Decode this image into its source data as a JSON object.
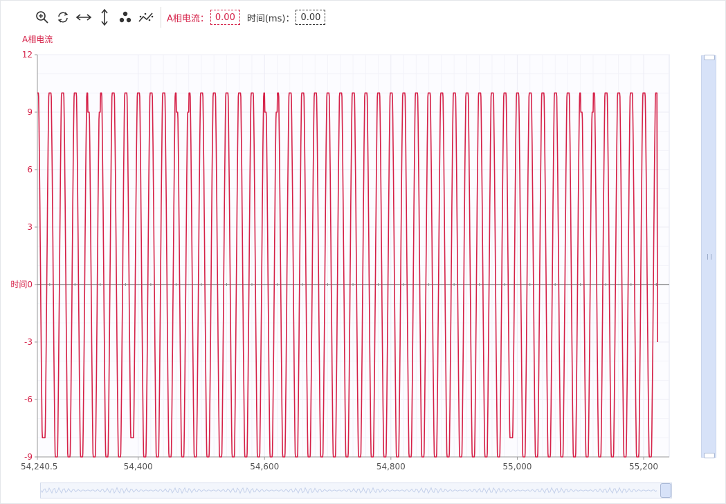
{
  "toolbar": {
    "icons": [
      "zoom-in-icon",
      "refresh-icon",
      "horizontal-arrows-icon",
      "vertical-arrows-icon",
      "scatter-dots-icon",
      "trend-line-icon"
    ],
    "readouts": {
      "current_label": "A相电流：",
      "current_value": "0.00",
      "time_label": "时间(ms)：",
      "time_value": "0.00"
    }
  },
  "colors": {
    "series": "#d52148",
    "accent": "#d52148",
    "grid": "#ececf5",
    "axis": "#999999",
    "slider_fill": "#d7e2f8"
  },
  "chart_data": {
    "type": "line",
    "ylabel": "A相电流",
    "xlabel": "",
    "zero_label": "时间0",
    "ylim": [
      -9,
      12
    ],
    "xlim": [
      54240.5,
      55240.5
    ],
    "y_ticks": [
      "12",
      "9",
      "6",
      "3",
      "0",
      "-3",
      "-6",
      "-9"
    ],
    "x_ticks": [
      {
        "value": 54240.5,
        "label": "54,240.5"
      },
      {
        "value": 54400,
        "label": "54,400"
      },
      {
        "value": 54600,
        "label": "54,600"
      },
      {
        "value": 54800,
        "label": "54,800"
      },
      {
        "value": 55000,
        "label": "55,000"
      },
      {
        "value": 55200,
        "label": "55,200"
      }
    ],
    "grid": true,
    "series": [
      {
        "peak": 10,
        "trough": -9,
        "period_ms": 20,
        "reduced_peak": 9,
        "reduced_trough": -8,
        "end_value": -3
      }
    ]
  }
}
